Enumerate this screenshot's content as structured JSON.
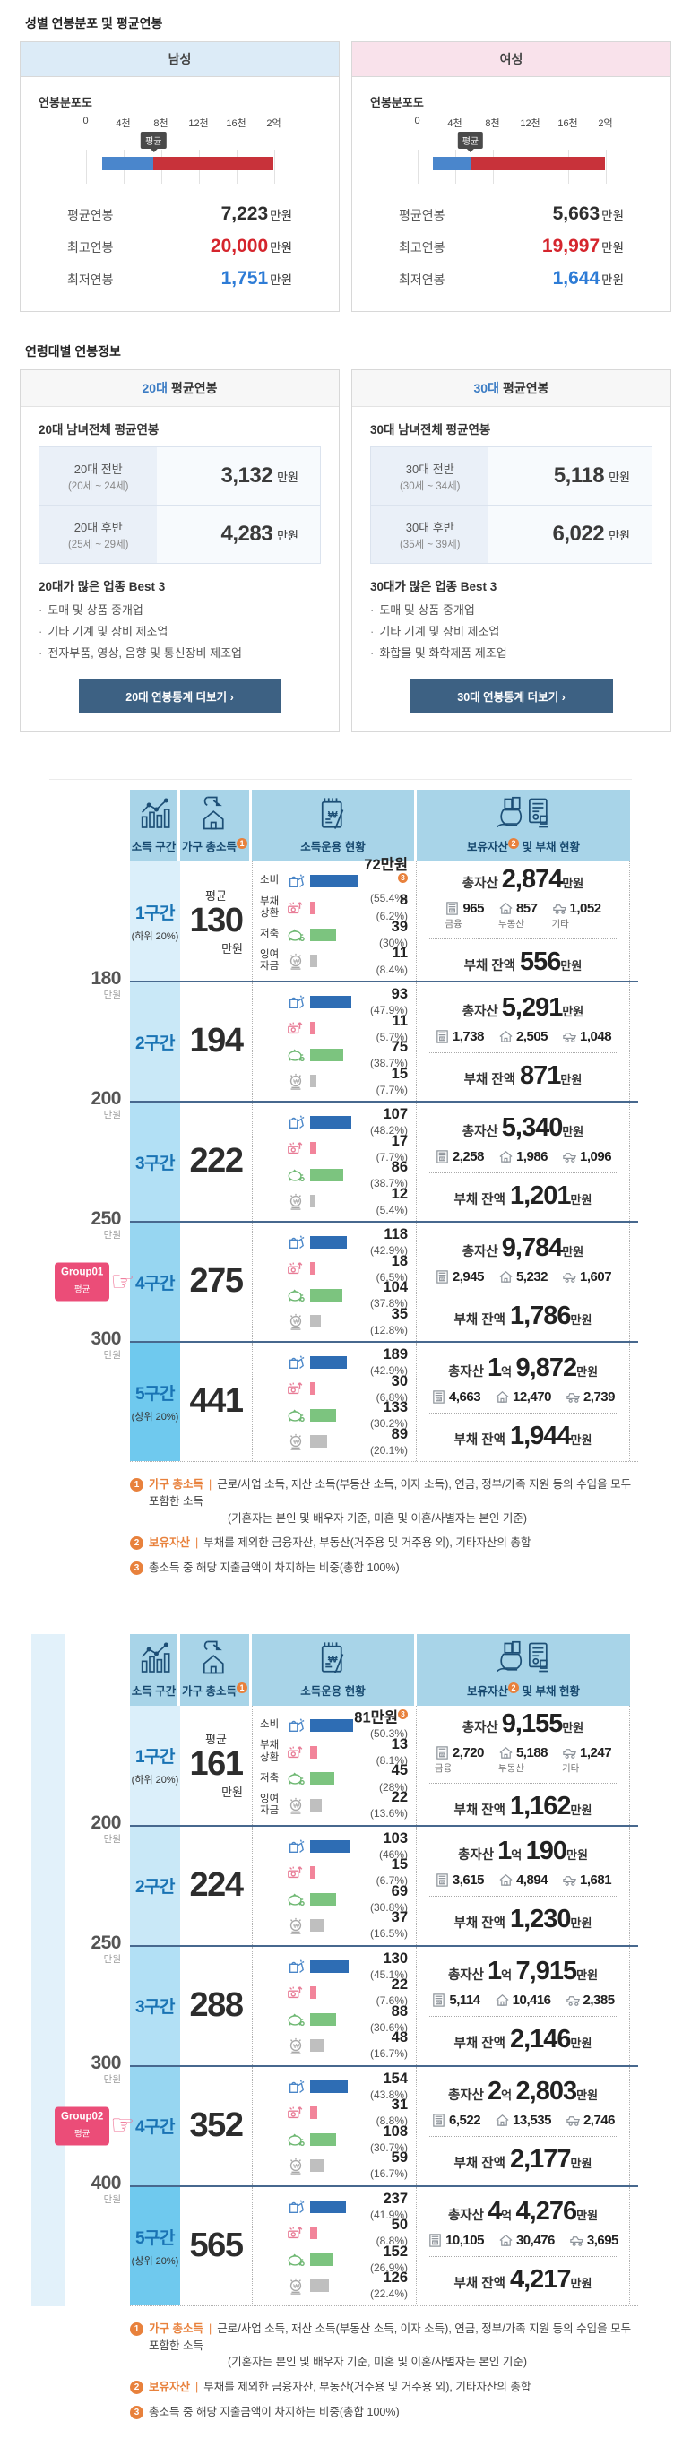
{
  "sections": {
    "gender_title": "성별 연봉분포 및 평균연봉",
    "age_title": "연령대별 연봉정보"
  },
  "colors": {
    "male_header": "#dcebf7",
    "female_header": "#f9e2eb",
    "dist_blue": "#4a86cc",
    "dist_red": "#c8323a",
    "max_red": "#d5252d",
    "min_blue": "#2e7cd6",
    "table_header_bg": "#a8d4e8",
    "badge_pink": "#eb4d78",
    "footnote_orange": "#e8813c",
    "boundary_line": "#47688e"
  },
  "gender_cards": [
    {
      "title": "남성",
      "theme": "male",
      "dist_label": "연봉분포도",
      "ticks": [
        "0",
        "4천",
        "8천",
        "12천",
        "16천",
        "2억"
      ],
      "marker": "평균",
      "bar_start_pct": 8.8,
      "bar_avg_pct": 36.1,
      "stats": [
        {
          "label": "평균연봉",
          "value": "7,223",
          "unit": "만원",
          "type": "avg"
        },
        {
          "label": "최고연봉",
          "value": "20,000",
          "unit": "만원",
          "type": "max"
        },
        {
          "label": "최저연봉",
          "value": "1,751",
          "unit": "만원",
          "type": "min"
        }
      ]
    },
    {
      "title": "여성",
      "theme": "female",
      "dist_label": "연봉분포도",
      "ticks": [
        "0",
        "4천",
        "8천",
        "12천",
        "16천",
        "2억"
      ],
      "marker": "평균",
      "bar_start_pct": 8.2,
      "bar_avg_pct": 28.3,
      "stats": [
        {
          "label": "평균연봉",
          "value": "5,663",
          "unit": "만원",
          "type": "avg"
        },
        {
          "label": "최고연봉",
          "value": "19,997",
          "unit": "만원",
          "type": "max"
        },
        {
          "label": "최저연봉",
          "value": "1,644",
          "unit": "만원",
          "type": "min"
        }
      ]
    }
  ],
  "age_cards": [
    {
      "title_hl": "20대",
      "title_rest": "평균연봉",
      "subtitle": "20대 남녀전체 평균연봉",
      "rows": [
        {
          "label": "20대 전반",
          "sub": "(20세 ~ 24세)",
          "value": "3,132",
          "unit": "만원"
        },
        {
          "label": "20대 후반",
          "sub": "(25세 ~ 29세)",
          "value": "4,283",
          "unit": "만원"
        }
      ],
      "best_title": "20대가 많은 업종 Best 3",
      "best_items": [
        "도매 및 상품 중개업",
        "기타 기계 및 장비 제조업",
        "전자부품, 영상, 음향 및 통신장비 제조업"
      ],
      "button_label": "20대 연봉통계 더보기 ›"
    },
    {
      "title_hl": "30대",
      "title_rest": "평균연봉",
      "subtitle": "30대 남녀전체 평균연봉",
      "rows": [
        {
          "label": "30대 전반",
          "sub": "(30세 ~ 34세)",
          "value": "5,118",
          "unit": "만원"
        },
        {
          "label": "30대 후반",
          "sub": "(35세 ~ 39세)",
          "value": "6,022",
          "unit": "만원"
        }
      ],
      "best_title": "30대가 많은 업종 Best 3",
      "best_items": [
        "도매 및 상품 중개업",
        "기타 기계 및 장비 제조업",
        "화합물 및 화학제품 제조업"
      ],
      "button_label": "30대 연봉통계 더보기 ›"
    }
  ],
  "table_common": {
    "col1": "소득 구간",
    "col2": "가구 총소득",
    "col3": "소득운용 현황",
    "col4a": "보유자산",
    "col4b": " 및 부채 현황",
    "usage_labels": [
      "소비",
      "부채 상환",
      "저축",
      "잉여 자금"
    ],
    "asset_labels": [
      "금융",
      "부동산",
      "기타"
    ],
    "total_label": "총자산",
    "debt_label": "부채 잔액",
    "avg_label": "평균",
    "unit": "만원",
    "bar_colors": [
      "#2e6db4",
      "#f2849a",
      "#7cc47f",
      "#bfbfbf"
    ],
    "strip_colors": [
      "#dbeffa",
      "#c9e8f7",
      "#b2e0f5",
      "#97d6f1",
      "#6fc9ee"
    ]
  },
  "income_tables": [
    {
      "badge": {
        "line1": "Group01",
        "line2": "평균"
      },
      "badge_row": 3,
      "boundaries": [
        "180",
        "200",
        "250",
        "300"
      ],
      "rows": [
        {
          "bracket": "1구간",
          "sub": "(하위 20%)",
          "income": "130",
          "usage": [
            {
              "v": "72",
              "vu": "만원",
              "fn": "3",
              "p": "(55.4%)",
              "pct": 55.4
            },
            {
              "v": "8",
              "p": "(6.2%)",
              "pct": 6.2
            },
            {
              "v": "39",
              "p": "(30%)",
              "pct": 30
            },
            {
              "v": "11",
              "p": "(8.4%)",
              "pct": 8.4
            }
          ],
          "total": [
            [
              "2,874",
              "만원"
            ]
          ],
          "assets": [
            "965",
            "857",
            "1,052"
          ],
          "debt": "556"
        },
        {
          "bracket": "2구간",
          "income": "194",
          "usage": [
            {
              "v": "93",
              "p": "(47.9%)",
              "pct": 47.9
            },
            {
              "v": "11",
              "p": "(5.7%)",
              "pct": 5.7
            },
            {
              "v": "75",
              "p": "(38.7%)",
              "pct": 38.7
            },
            {
              "v": "15",
              "p": "(7.7%)",
              "pct": 7.7
            }
          ],
          "total": [
            [
              "5,291",
              "만원"
            ]
          ],
          "assets": [
            "1,738",
            "2,505",
            "1,048"
          ],
          "debt": "871"
        },
        {
          "bracket": "3구간",
          "income": "222",
          "usage": [
            {
              "v": "107",
              "p": "(48.2%)",
              "pct": 48.2
            },
            {
              "v": "17",
              "p": "(7.7%)",
              "pct": 7.7
            },
            {
              "v": "86",
              "p": "(38.7%)",
              "pct": 38.7
            },
            {
              "v": "12",
              "p": "(5.4%)",
              "pct": 5.4
            }
          ],
          "total": [
            [
              "5,340",
              "만원"
            ]
          ],
          "assets": [
            "2,258",
            "1,986",
            "1,096"
          ],
          "debt": "1,201"
        },
        {
          "bracket": "4구간",
          "income": "275",
          "usage": [
            {
              "v": "118",
              "p": "(42.9%)",
              "pct": 42.9
            },
            {
              "v": "18",
              "p": "(6.5%)",
              "pct": 6.5
            },
            {
              "v": "104",
              "p": "(37.8%)",
              "pct": 37.8
            },
            {
              "v": "35",
              "p": "(12.8%)",
              "pct": 12.8
            }
          ],
          "total": [
            [
              "9,784",
              "만원"
            ]
          ],
          "assets": [
            "2,945",
            "5,232",
            "1,607"
          ],
          "debt": "1,786"
        },
        {
          "bracket": "5구간",
          "sub": "(상위 20%)",
          "income": "441",
          "usage": [
            {
              "v": "189",
              "p": "(42.9%)",
              "pct": 42.9
            },
            {
              "v": "30",
              "p": "(6.8%)",
              "pct": 6.8
            },
            {
              "v": "133",
              "p": "(30.2%)",
              "pct": 30.2
            },
            {
              "v": "89",
              "p": "(20.1%)",
              "pct": 20.1
            }
          ],
          "total": [
            [
              "1",
              "억"
            ],
            [
              "9,872",
              "만원"
            ]
          ],
          "assets": [
            "4,663",
            "12,470",
            "2,739"
          ],
          "debt": "1,944"
        }
      ]
    },
    {
      "badge": {
        "line1": "Group02",
        "line2": "평균"
      },
      "badge_row": 3,
      "left_strip": true,
      "boundaries": [
        "200",
        "250",
        "300",
        "400"
      ],
      "rows": [
        {
          "bracket": "1구간",
          "sub": "(하위 20%)",
          "income": "161",
          "usage": [
            {
              "v": "81",
              "vu": "만원",
              "fn": "3",
              "p": "(50.3%)",
              "pct": 50.3
            },
            {
              "v": "13",
              "p": "(8.1%)",
              "pct": 8.1
            },
            {
              "v": "45",
              "p": "(28%)",
              "pct": 28
            },
            {
              "v": "22",
              "p": "(13.6%)",
              "pct": 13.6
            }
          ],
          "total": [
            [
              "9,155",
              "만원"
            ]
          ],
          "assets": [
            "2,720",
            "5,188",
            "1,247"
          ],
          "debt": "1,162"
        },
        {
          "bracket": "2구간",
          "income": "224",
          "usage": [
            {
              "v": "103",
              "p": "(46%)",
              "pct": 46
            },
            {
              "v": "15",
              "p": "(6.7%)",
              "pct": 6.7
            },
            {
              "v": "69",
              "p": "(30.8%)",
              "pct": 30.8
            },
            {
              "v": "37",
              "p": "(16.5%)",
              "pct": 16.5
            }
          ],
          "total": [
            [
              "1",
              "억"
            ],
            [
              "190",
              "만원"
            ]
          ],
          "assets": [
            "3,615",
            "4,894",
            "1,681"
          ],
          "debt": "1,230"
        },
        {
          "bracket": "3구간",
          "income": "288",
          "usage": [
            {
              "v": "130",
              "p": "(45.1%)",
              "pct": 45.1
            },
            {
              "v": "22",
              "p": "(7.6%)",
              "pct": 7.6
            },
            {
              "v": "88",
              "p": "(30.6%)",
              "pct": 30.6
            },
            {
              "v": "48",
              "p": "(16.7%)",
              "pct": 16.7
            }
          ],
          "total": [
            [
              "1",
              "억"
            ],
            [
              "7,915",
              "만원"
            ]
          ],
          "assets": [
            "5,114",
            "10,416",
            "2,385"
          ],
          "debt": "2,146"
        },
        {
          "bracket": "4구간",
          "income": "352",
          "usage": [
            {
              "v": "154",
              "p": "(43.8%)",
              "pct": 43.8
            },
            {
              "v": "31",
              "p": "(8.8%)",
              "pct": 8.8
            },
            {
              "v": "108",
              "p": "(30.7%)",
              "pct": 30.7
            },
            {
              "v": "59",
              "p": "(16.7%)",
              "pct": 16.7
            }
          ],
          "total": [
            [
              "2",
              "억"
            ],
            [
              "2,803",
              "만원"
            ]
          ],
          "assets": [
            "6,522",
            "13,535",
            "2,746"
          ],
          "debt": "2,177"
        },
        {
          "bracket": "5구간",
          "sub": "(상위 20%)",
          "income": "565",
          "usage": [
            {
              "v": "237",
              "p": "(41.9%)",
              "pct": 41.9
            },
            {
              "v": "50",
              "p": "(8.8%)",
              "pct": 8.8
            },
            {
              "v": "152",
              "p": "(26.9%)",
              "pct": 26.9
            },
            {
              "v": "126",
              "p": "(22.4%)",
              "pct": 22.4
            }
          ],
          "total": [
            [
              "4",
              "억"
            ],
            [
              "4,276",
              "만원"
            ]
          ],
          "assets": [
            "10,105",
            "30,476",
            "3,695"
          ],
          "debt": "4,217"
        }
      ]
    }
  ],
  "footnotes": [
    {
      "num": "1",
      "label": "가구 총소득",
      "sep": "|",
      "text": "근로/사업 소득, 재산 소득(부동산 소득, 이자 소득), 연금, 정부/가족 지원 등의 수입을 모두 포함한 소득",
      "text2": "(기혼자는 본인 및 배우자 기준, 미혼 및 이혼/사별자는 본인 기준)"
    },
    {
      "num": "2",
      "label": "보유자산",
      "sep": "|",
      "text": "부채를 제외한 금융자산, 부동산(거주용 및 거주용 외), 기타자산의 총합"
    },
    {
      "num": "3",
      "label": "",
      "sep": "",
      "text": "총소득 중 해당 지출금액이 차지하는 비중(총합 100%)"
    }
  ]
}
